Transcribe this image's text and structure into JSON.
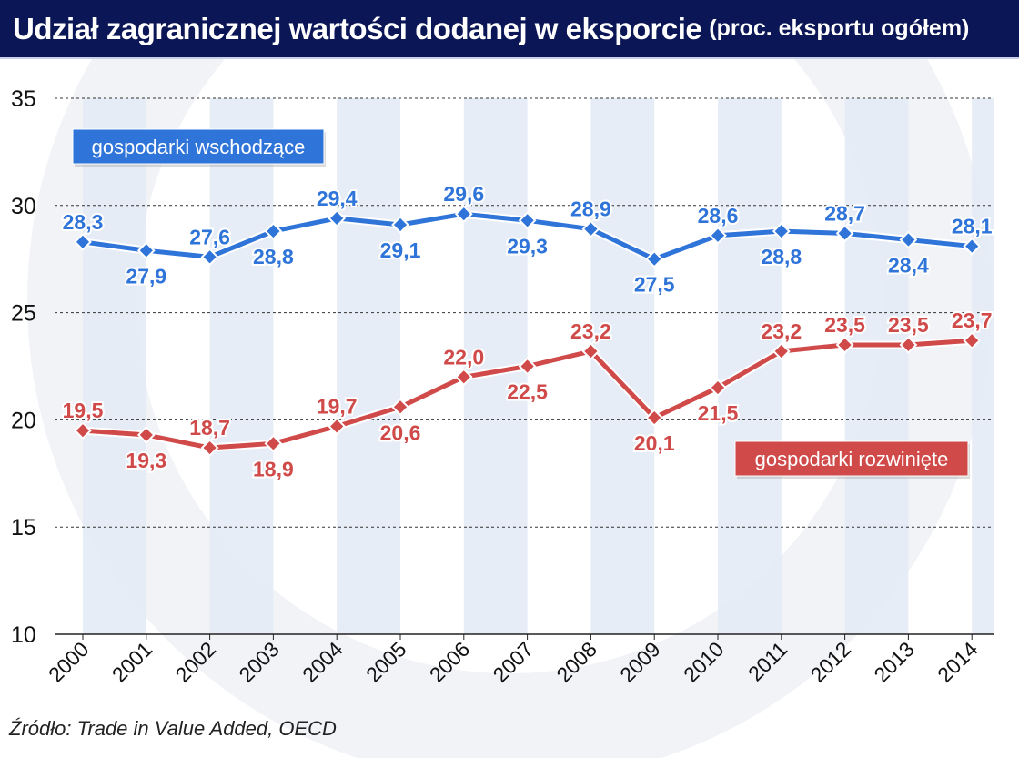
{
  "header": {
    "title": "Udział zagranicznej wartości dodanej w eksporcie",
    "subtitle": "(proc. eksportu ogółem)"
  },
  "source": "Źródło: Trade in Value Added, OECD",
  "colors": {
    "header": "#0b1656",
    "emerging": "#2f74d8",
    "developed": "#d04a4a",
    "stripe": "#e3eaf6"
  },
  "chart_data": {
    "type": "line",
    "title": "Udział zagranicznej wartości dodanej w eksporcie (proc. eksportu ogółem)",
    "categories": [
      "2000",
      "2001",
      "2002",
      "2003",
      "2004",
      "2005",
      "2006",
      "2007",
      "2008",
      "2009",
      "2010",
      "2011",
      "2012",
      "2013",
      "2014"
    ],
    "ylim": [
      10,
      35
    ],
    "yticks": [
      "10",
      "15",
      "20",
      "25",
      "30",
      "35"
    ],
    "grid": "horizontal dashed",
    "series": [
      {
        "name": "gospodarki wschodzące",
        "color": "#2f74d8",
        "values": [
          28.3,
          27.9,
          27.6,
          28.8,
          29.4,
          29.1,
          29.6,
          29.3,
          28.9,
          27.5,
          28.6,
          28.8,
          28.7,
          28.4,
          28.1
        ]
      },
      {
        "name": "gospodarki rozwinięte",
        "color": "#d04a4a",
        "values": [
          19.5,
          19.3,
          18.7,
          18.9,
          19.7,
          20.6,
          22.0,
          22.5,
          23.2,
          20.1,
          21.5,
          23.2,
          23.5,
          23.5,
          23.7
        ]
      }
    ]
  }
}
